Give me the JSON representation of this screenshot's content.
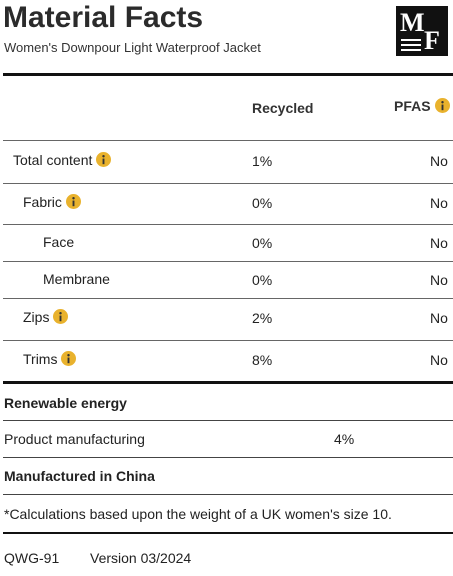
{
  "header": {
    "title": "Material Facts",
    "subtitle": "Women's Downpour Light Waterproof Jacket",
    "logo": {
      "top": "M",
      "bottom": "F"
    }
  },
  "table": {
    "columns": [
      "Recycled",
      "PFAS"
    ],
    "rows": [
      {
        "label": "Total content",
        "level": 0,
        "info": true,
        "recycled": "1%",
        "pfas": "No"
      },
      {
        "label": "Fabric",
        "level": 1,
        "info": true,
        "recycled": "0%",
        "pfas": "No"
      },
      {
        "label": "Face",
        "level": 2,
        "info": false,
        "recycled": "0%",
        "pfas": "No"
      },
      {
        "label": "Membrane",
        "level": 2,
        "info": false,
        "recycled": "0%",
        "pfas": "No"
      },
      {
        "label": "Zips",
        "level": 1,
        "info": true,
        "recycled": "2%",
        "pfas": "No"
      },
      {
        "label": "Trims",
        "level": 1,
        "info": true,
        "recycled": "8%",
        "pfas": "No"
      }
    ]
  },
  "renewable": {
    "heading": "Renewable energy",
    "label": "Product manufacturing",
    "value": "4%"
  },
  "origin": "Manufactured in China",
  "footnote": "*Calculations based upon the weight of a UK women's size 10.",
  "footer": {
    "code": "QWG-91",
    "version": "Version 03/2024"
  }
}
